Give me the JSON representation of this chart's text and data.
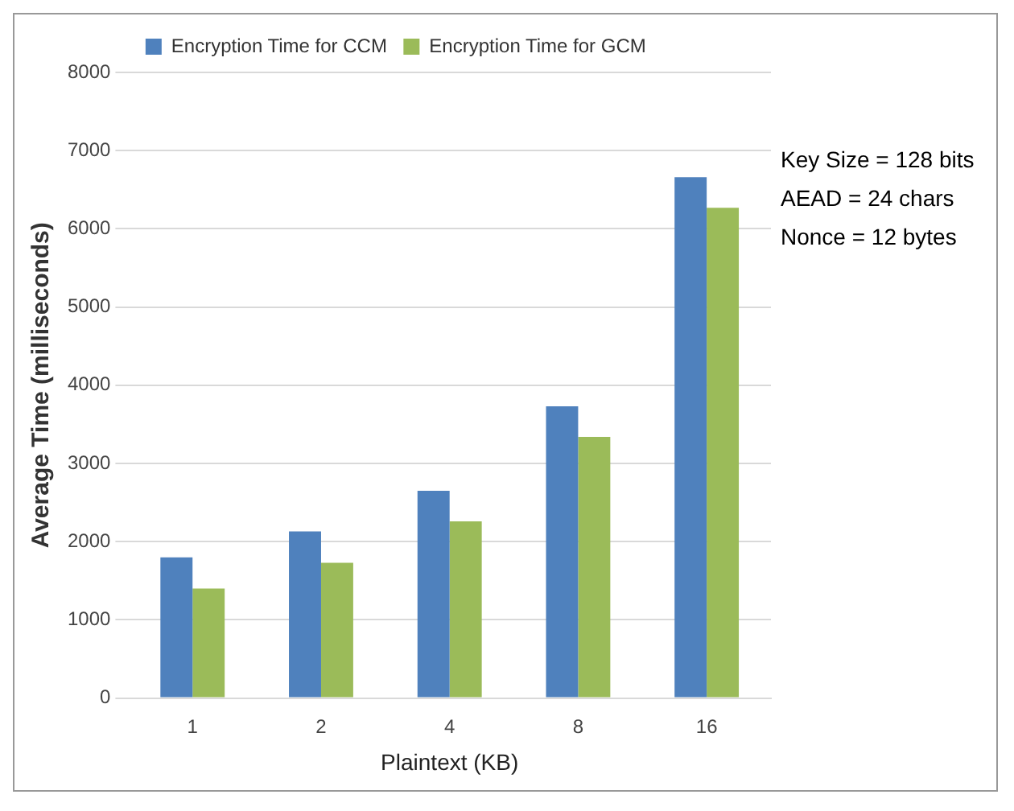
{
  "chart_data": {
    "type": "bar",
    "xlabel": "Plaintext (KB)",
    "ylabel": "Average Time (milliseconds)",
    "categories": [
      "1",
      "2",
      "4",
      "8",
      "16"
    ],
    "series": [
      {
        "name": "Encryption Time for CCM",
        "color": "#4f81bd",
        "values": [
          1800,
          2130,
          2650,
          3730,
          6660
        ]
      },
      {
        "name": "Encryption Time for GCM",
        "color": "#9bbb59",
        "values": [
          1400,
          1730,
          2260,
          3340,
          6270
        ]
      }
    ],
    "ylim": [
      0,
      8000
    ],
    "yticks": [
      0,
      1000,
      2000,
      3000,
      4000,
      5000,
      6000,
      7000,
      8000
    ],
    "grid": "y",
    "legend": "top",
    "annotations": [
      "Key Size = 128 bits",
      "AEAD = 24 chars",
      "Nonce = 12 bytes"
    ]
  }
}
